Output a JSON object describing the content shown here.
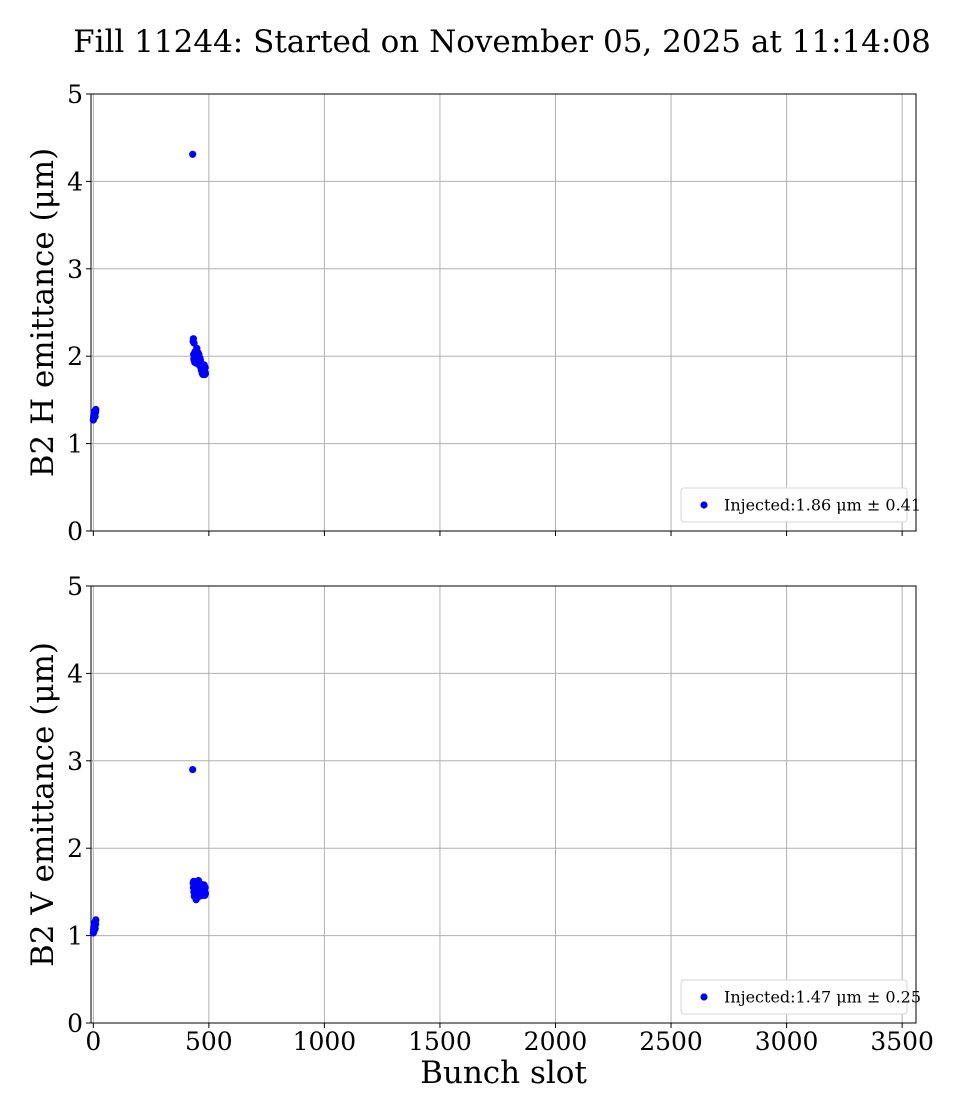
{
  "title": "Fill 11244: Started on November 05, 2025 at 11:14:08",
  "colors": {
    "marker": "#0000ff",
    "grid": "#b0b0b0",
    "axis": "#000000"
  },
  "chart_data": [
    {
      "type": "scatter",
      "ylabel": "B2 H emittance (μm)",
      "xlabel": "",
      "xlim": [
        -10,
        3560
      ],
      "ylim": [
        0,
        5
      ],
      "xticks": [
        0,
        500,
        1000,
        1500,
        2000,
        2500,
        3000,
        3500
      ],
      "yticks": [
        0,
        1,
        2,
        3,
        4,
        5
      ],
      "show_xtick_labels": false,
      "grid": true,
      "legend": {
        "placement": "lower-right",
        "label": "Injected:1.86 μm ± 0.41"
      },
      "series": [
        {
          "name": "Injected",
          "points": [
            [
              0,
              1.27
            ],
            [
              1,
              1.3
            ],
            [
              2,
              1.33
            ],
            [
              3,
              1.29
            ],
            [
              4,
              1.35
            ],
            [
              5,
              1.32
            ],
            [
              6,
              1.37
            ],
            [
              7,
              1.34
            ],
            [
              8,
              1.31
            ],
            [
              9,
              1.38
            ],
            [
              10,
              1.36
            ],
            [
              11,
              1.39
            ],
            [
              430,
              4.31
            ],
            [
              432,
              2.17
            ],
            [
              433,
              2.2
            ],
            [
              434,
              2.02
            ],
            [
              435,
              1.97
            ],
            [
              436,
              2.15
            ],
            [
              437,
              1.95
            ],
            [
              438,
              2.0
            ],
            [
              439,
              1.93
            ],
            [
              440,
              2.05
            ],
            [
              441,
              1.98
            ],
            [
              442,
              1.95
            ],
            [
              443,
              2.03
            ],
            [
              444,
              1.96
            ],
            [
              445,
              1.92
            ],
            [
              446,
              2.01
            ],
            [
              447,
              1.94
            ],
            [
              448,
              2.09
            ],
            [
              449,
              1.97
            ],
            [
              450,
              2.0
            ],
            [
              451,
              1.95
            ],
            [
              452,
              1.92
            ],
            [
              453,
              2.04
            ],
            [
              454,
              1.96
            ],
            [
              455,
              1.99
            ],
            [
              456,
              1.93
            ],
            [
              457,
              2.02
            ],
            [
              458,
              1.9
            ],
            [
              459,
              1.97
            ],
            [
              460,
              1.94
            ],
            [
              461,
              1.98
            ],
            [
              462,
              1.91
            ],
            [
              463,
              1.96
            ],
            [
              464,
              1.89
            ],
            [
              465,
              1.93
            ],
            [
              466,
              1.86
            ],
            [
              467,
              1.9
            ],
            [
              468,
              1.84
            ],
            [
              469,
              1.88
            ],
            [
              470,
              1.82
            ],
            [
              471,
              1.87
            ],
            [
              472,
              1.8
            ],
            [
              473,
              1.85
            ],
            [
              474,
              1.83
            ],
            [
              475,
              1.79
            ],
            [
              476,
              1.86
            ],
            [
              477,
              1.81
            ],
            [
              478,
              1.88
            ],
            [
              479,
              1.84
            ],
            [
              480,
              1.9
            ],
            [
              481,
              1.83
            ],
            [
              482,
              1.79
            ],
            [
              483,
              1.82
            ],
            [
              484,
              1.87
            ],
            [
              485,
              1.8
            ]
          ]
        }
      ]
    },
    {
      "type": "scatter",
      "ylabel": "B2 V emittance (μm)",
      "xlabel": "Bunch slot",
      "xlim": [
        -10,
        3560
      ],
      "ylim": [
        0,
        5
      ],
      "xticks": [
        0,
        500,
        1000,
        1500,
        2000,
        2500,
        3000,
        3500
      ],
      "yticks": [
        0,
        1,
        2,
        3,
        4,
        5
      ],
      "show_xtick_labels": true,
      "grid": true,
      "legend": {
        "placement": "lower-right",
        "label": "Injected:1.47 μm ± 0.25"
      },
      "series": [
        {
          "name": "Injected",
          "points": [
            [
              0,
              1.03
            ],
            [
              1,
              1.07
            ],
            [
              2,
              1.1
            ],
            [
              3,
              1.05
            ],
            [
              4,
              1.12
            ],
            [
              5,
              1.09
            ],
            [
              6,
              1.15
            ],
            [
              7,
              1.11
            ],
            [
              8,
              1.08
            ],
            [
              9,
              1.16
            ],
            [
              10,
              1.13
            ],
            [
              11,
              1.18
            ],
            [
              430,
              2.9
            ],
            [
              432,
              1.6
            ],
            [
              433,
              1.55
            ],
            [
              434,
              1.62
            ],
            [
              435,
              1.5
            ],
            [
              436,
              1.58
            ],
            [
              437,
              1.45
            ],
            [
              438,
              1.53
            ],
            [
              439,
              1.61
            ],
            [
              440,
              1.48
            ],
            [
              441,
              1.56
            ],
            [
              442,
              1.51
            ],
            [
              443,
              1.44
            ],
            [
              444,
              1.59
            ],
            [
              445,
              1.41
            ],
            [
              446,
              1.54
            ],
            [
              447,
              1.49
            ],
            [
              448,
              1.57
            ],
            [
              449,
              1.46
            ],
            [
              450,
              1.52
            ],
            [
              451,
              1.6
            ],
            [
              452,
              1.47
            ],
            [
              453,
              1.55
            ],
            [
              454,
              1.5
            ],
            [
              455,
              1.63
            ],
            [
              456,
              1.48
            ],
            [
              457,
              1.56
            ],
            [
              458,
              1.52
            ],
            [
              459,
              1.45
            ],
            [
              460,
              1.58
            ],
            [
              461,
              1.5
            ],
            [
              462,
              1.54
            ],
            [
              463,
              1.47
            ],
            [
              464,
              1.59
            ],
            [
              465,
              1.51
            ],
            [
              466,
              1.55
            ],
            [
              467,
              1.48
            ],
            [
              468,
              1.53
            ],
            [
              469,
              1.57
            ],
            [
              470,
              1.5
            ],
            [
              471,
              1.46
            ],
            [
              472,
              1.54
            ],
            [
              473,
              1.49
            ],
            [
              474,
              1.56
            ],
            [
              475,
              1.52
            ],
            [
              476,
              1.47
            ],
            [
              477,
              1.55
            ],
            [
              478,
              1.51
            ],
            [
              479,
              1.58
            ],
            [
              480,
              1.49
            ],
            [
              481,
              1.53
            ],
            [
              482,
              1.46
            ],
            [
              483,
              1.5
            ],
            [
              484,
              1.55
            ],
            [
              485,
              1.48
            ]
          ]
        }
      ]
    }
  ]
}
